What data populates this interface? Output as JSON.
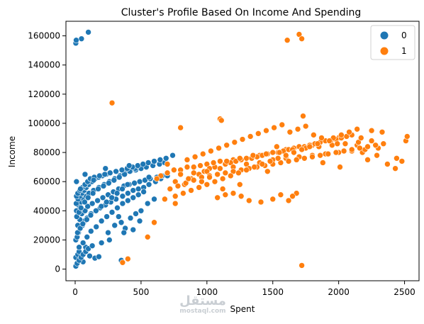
{
  "chart_data": {
    "type": "scatter",
    "title": "Cluster's Profile Based On Income And Spending",
    "xlabel": "Spent",
    "ylabel": "Income",
    "xlim": [
      -70,
      2610
    ],
    "ylim": [
      -8000,
      170000
    ],
    "xticks": [
      0,
      500,
      1000,
      1500,
      2000,
      2500
    ],
    "yticks": [
      0,
      20000,
      40000,
      60000,
      80000,
      100000,
      120000,
      140000,
      160000
    ],
    "grid": false,
    "legend": {
      "title": "",
      "placement": "top-right",
      "entries": [
        "0",
        "1"
      ]
    },
    "series": [
      {
        "name": "0",
        "color": "#1f77b4",
        "x": [
          5,
          8,
          48,
          100,
          10,
          5,
          20,
          30,
          60,
          80,
          110,
          150,
          200,
          250,
          300,
          350,
          380,
          420,
          460,
          500,
          550,
          600,
          5,
          15,
          25,
          40,
          55,
          70,
          90,
          120,
          160,
          190,
          230,
          270,
          310,
          360,
          400,
          440,
          480,
          520,
          560,
          610,
          650,
          700,
          20,
          35,
          50,
          75,
          95,
          130,
          170,
          210,
          250,
          290,
          330,
          370,
          410,
          450,
          490,
          530,
          570,
          620,
          660,
          700,
          10,
          25,
          45,
          65,
          85,
          105,
          140,
          180,
          220,
          260,
          300,
          340,
          380,
          420,
          460,
          500,
          540,
          590,
          640,
          680,
          30,
          60,
          90,
          120,
          160,
          200,
          240,
          280,
          320,
          360,
          400,
          440,
          480,
          520,
          12,
          28,
          44,
          72,
          98,
          135,
          175,
          215,
          255,
          295,
          335,
          375,
          415,
          455,
          18,
          38,
          58,
          88,
          118,
          158,
          198,
          238,
          278,
          318,
          358,
          398,
          8,
          22,
          36,
          52,
          68,
          84,
          102,
          128,
          152,
          178,
          206,
          236,
          266,
          5,
          15,
          30,
          45,
          60,
          80,
          100,
          130,
          10,
          20,
          35,
          55,
          75,
          95,
          115,
          145,
          185,
          225,
          265,
          310,
          355,
          395,
          435,
          475,
          515,
          555,
          600,
          645,
          690,
          740,
          260,
          370,
          350,
          180,
          440,
          40,
          75,
          140,
          330,
          230,
          410,
          560,
          490
        ],
        "y": [
          155000,
          157000,
          158000,
          162500,
          60000,
          8000,
          10000,
          12000,
          5000,
          15000,
          9000,
          7500,
          18000,
          25000,
          30000,
          32000,
          28000,
          35000,
          38000,
          40000,
          45000,
          48000,
          20000,
          22000,
          25000,
          28000,
          30000,
          33000,
          35000,
          38000,
          40000,
          42000,
          44000,
          46000,
          48000,
          50000,
          52000,
          54000,
          55000,
          56000,
          58000,
          60000,
          62000,
          64000,
          30000,
          34000,
          38000,
          40000,
          43000,
          45000,
          47000,
          49000,
          51000,
          53000,
          55000,
          57000,
          58000,
          59000,
          60000,
          61000,
          62000,
          63000,
          64000,
          66000,
          40000,
          44000,
          46000,
          48000,
          50000,
          52000,
          54000,
          56000,
          58000,
          60000,
          62000,
          64000,
          66000,
          67000,
          68000,
          69000,
          70000,
          71000,
          72000,
          73000,
          15000,
          18000,
          22000,
          26000,
          29000,
          33000,
          36000,
          39000,
          42000,
          45000,
          47000,
          49000,
          51000,
          53000,
          36000,
          39000,
          42000,
          46000,
          49000,
          52000,
          55000,
          57000,
          59000,
          61000,
          63000,
          65000,
          67000,
          69000,
          25000,
          28000,
          31000,
          34000,
          37000,
          40000,
          43000,
          46000,
          49000,
          52000,
          55000,
          58000,
          45000,
          48000,
          50000,
          52000,
          54000,
          56000,
          58000,
          60000,
          62000,
          63000,
          64000,
          65000,
          66000,
          2000,
          4000,
          6000,
          8000,
          10000,
          12000,
          14000,
          16000,
          50000,
          52000,
          54000,
          56000,
          58000,
          60000,
          62000,
          63000,
          64000,
          65000,
          66000,
          67000,
          68000,
          69000,
          70000,
          71000,
          72000,
          73000,
          74000,
          75000,
          76000,
          78000,
          20000,
          25000,
          6000,
          8500,
          27000,
          55000,
          65000,
          61000,
          36000,
          69000,
          71000,
          63000,
          33000
        ]
      },
      {
        "name": "1",
        "color": "#ff7f0e",
        "x": [
          280,
          550,
          600,
          360,
          400,
          1610,
          1700,
          1720,
          1720,
          1730,
          2430,
          2510,
          2520,
          2330,
          2250,
          2100,
          2000,
          1900,
          1800,
          1700,
          1600,
          1500,
          1400,
          1300,
          1200,
          1100,
          1000,
          900,
          800,
          700,
          650,
          620,
          760,
          830,
          880,
          940,
          980,
          1020,
          1060,
          1140,
          1180,
          1220,
          1260,
          1340,
          1380,
          1420,
          1460,
          1540,
          1580,
          1620,
          1660,
          1740,
          1780,
          1820,
          1860,
          1940,
          1980,
          2020,
          2060,
          2140,
          2180,
          2220,
          2290,
          2370,
          2480,
          700,
          750,
          800,
          850,
          900,
          950,
          1000,
          1050,
          1100,
          1150,
          1200,
          1250,
          1300,
          1350,
          1400,
          1450,
          1500,
          1550,
          1600,
          1650,
          1700,
          1750,
          1800,
          1850,
          1900,
          1950,
          2000,
          2050,
          2100,
          2150,
          2200,
          2250,
          2300,
          720,
          780,
          840,
          900,
          960,
          1020,
          1080,
          1140,
          1200,
          1260,
          1320,
          1380,
          1440,
          1500,
          1560,
          1620,
          1680,
          1740,
          1800,
          1860,
          1920,
          1980,
          2040,
          2100,
          2160,
          2220,
          2280,
          2340,
          680,
          760,
          820,
          880,
          940,
          1000,
          1060,
          1120,
          1180,
          1240,
          1300,
          1360,
          1420,
          1480,
          1540,
          1600,
          1660,
          1720,
          1780,
          1840,
          1900,
          1960,
          2020,
          2080,
          2140,
          850,
          910,
          970,
          1030,
          1090,
          1150,
          1210,
          1270,
          1330,
          1390,
          1450,
          1510,
          1570,
          1630,
          1690,
          1750,
          1810,
          1870,
          1930,
          1990,
          1100,
          1110,
          1200,
          1260,
          1500,
          1560,
          1620,
          1680,
          1080,
          1140,
          1320,
          1410,
          1650,
          800,
          860,
          2170,
          2440,
          1120,
          960,
          1250,
          2010,
          1880,
          1530,
          760,
          1020,
          1460
        ],
        "y": [
          114000,
          22000,
          32000,
          4500,
          7000,
          157000,
          161000,
          158000,
          2500,
          105000,
          69000,
          88000,
          91000,
          94000,
          95000,
          92000,
          90000,
          88000,
          85000,
          84000,
          82000,
          80000,
          78000,
          76000,
          75000,
          74000,
          72000,
          70000,
          68000,
          66000,
          64000,
          62000,
          60000,
          58000,
          62000,
          65000,
          67000,
          69000,
          70000,
          72000,
          73000,
          74000,
          75000,
          76000,
          77000,
          78000,
          79000,
          80000,
          81000,
          82000,
          83000,
          84000,
          85000,
          86000,
          87000,
          88000,
          89000,
          90000,
          91000,
          85000,
          80000,
          75000,
          78000,
          72000,
          74000,
          72000,
          68000,
          65000,
          70000,
          66000,
          71000,
          67000,
          73000,
          69000,
          74000,
          70000,
          76000,
          72000,
          78000,
          73000,
          79000,
          75000,
          80000,
          76000,
          82000,
          77000,
          83000,
          78000,
          84000,
          79000,
          85000,
          80000,
          86000,
          81000,
          87000,
          82000,
          88000,
          83000,
          55000,
          57000,
          59000,
          61000,
          63000,
          64000,
          65000,
          66000,
          67000,
          68000,
          69000,
          70000,
          71000,
          72000,
          73000,
          74000,
          75000,
          76000,
          77000,
          78000,
          79000,
          80000,
          81000,
          82000,
          83000,
          84000,
          85000,
          86000,
          48000,
          50000,
          52000,
          54000,
          56000,
          58000,
          60000,
          62000,
          64000,
          66000,
          68000,
          70000,
          72000,
          74000,
          76000,
          78000,
          80000,
          82000,
          84000,
          86000,
          88000,
          90000,
          92000,
          94000,
          96000,
          75000,
          77000,
          79000,
          81000,
          83000,
          85000,
          87000,
          89000,
          91000,
          93000,
          95000,
          97000,
          99000,
          94000,
          96000,
          98000,
          92000,
          90000,
          88000,
          86000,
          103000,
          102000,
          52000,
          50000,
          48000,
          51000,
          47000,
          52000,
          49000,
          51000,
          47000,
          46000,
          50000,
          97000,
          62000,
          90000,
          76000,
          55000,
          60000,
          58000,
          70000,
          73000,
          84000,
          45000,
          63000,
          67000
        ]
      }
    ]
  },
  "watermark": {
    "brand": "مستقل",
    "domain": "mostaql.com"
  }
}
